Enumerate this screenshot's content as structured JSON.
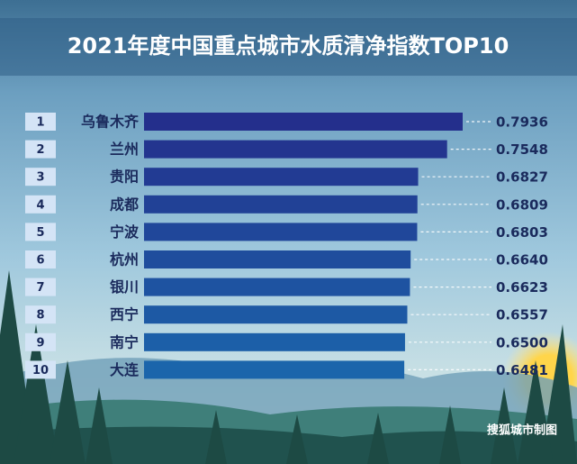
{
  "chart_data": {
    "type": "hbar",
    "title": "2021年度中国重点城市水质清净指数TOP10",
    "ranks": [
      "1",
      "2",
      "3",
      "4",
      "5",
      "6",
      "7",
      "8",
      "9",
      "10"
    ],
    "categories": [
      "乌鲁木齐",
      "兰州",
      "贵阳",
      "成都",
      "宁波",
      "杭州",
      "银川",
      "西宁",
      "南宁",
      "大连"
    ],
    "values": [
      0.7936,
      0.7548,
      0.6827,
      0.6809,
      0.6803,
      0.664,
      0.6623,
      0.6557,
      0.65,
      0.6481
    ],
    "value_labels": [
      "0.7936",
      "0.7548",
      "0.6827",
      "0.6809",
      "0.6803",
      "0.6640",
      "0.6623",
      "0.6557",
      "0.6500",
      "0.6481"
    ],
    "colors": [
      "#242f8c",
      "#23358f",
      "#223b93",
      "#214196",
      "#20479a",
      "#1f4d9d",
      "#1e53a1",
      "#1d59a4",
      "#1c5fa8",
      "#1b65ab"
    ],
    "source": "搜狐城市制图"
  }
}
